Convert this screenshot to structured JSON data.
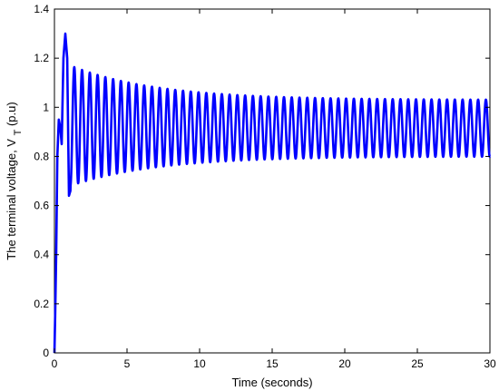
{
  "chart_data": {
    "type": "line",
    "xlabel": "Time (seconds)",
    "ylabel_main": "The terminal voltage, V",
    "ylabel_sub": "T",
    "ylabel_unit": " (p.u)",
    "xlim": [
      0,
      30
    ],
    "ylim": [
      0,
      1.4
    ],
    "xticks": [
      0,
      5,
      10,
      15,
      20,
      25,
      30
    ],
    "yticks": [
      0,
      0.2,
      0.4,
      0.6,
      0.8,
      1,
      1.2,
      1.4
    ],
    "grid": false,
    "series": [
      {
        "color": "#0000ff",
        "startup": [
          [
            0,
            0
          ],
          [
            0.05,
            0.15
          ],
          [
            0.12,
            0.4
          ],
          [
            0.2,
            0.8
          ],
          [
            0.3,
            0.95
          ],
          [
            0.4,
            0.92
          ],
          [
            0.5,
            0.85
          ],
          [
            0.62,
            1.2
          ],
          [
            0.75,
            1.3
          ],
          [
            0.88,
            1.2
          ],
          [
            1.0,
            0.64
          ],
          [
            1.1,
            0.66
          ]
        ],
        "oscillation": {
          "t_start": 1.1,
          "t_end": 30,
          "period": 0.535,
          "max_start": 1.17,
          "max_end": 1.03,
          "min_start": 0.68,
          "min_end": 0.8,
          "decay": 0.17
        }
      }
    ]
  }
}
